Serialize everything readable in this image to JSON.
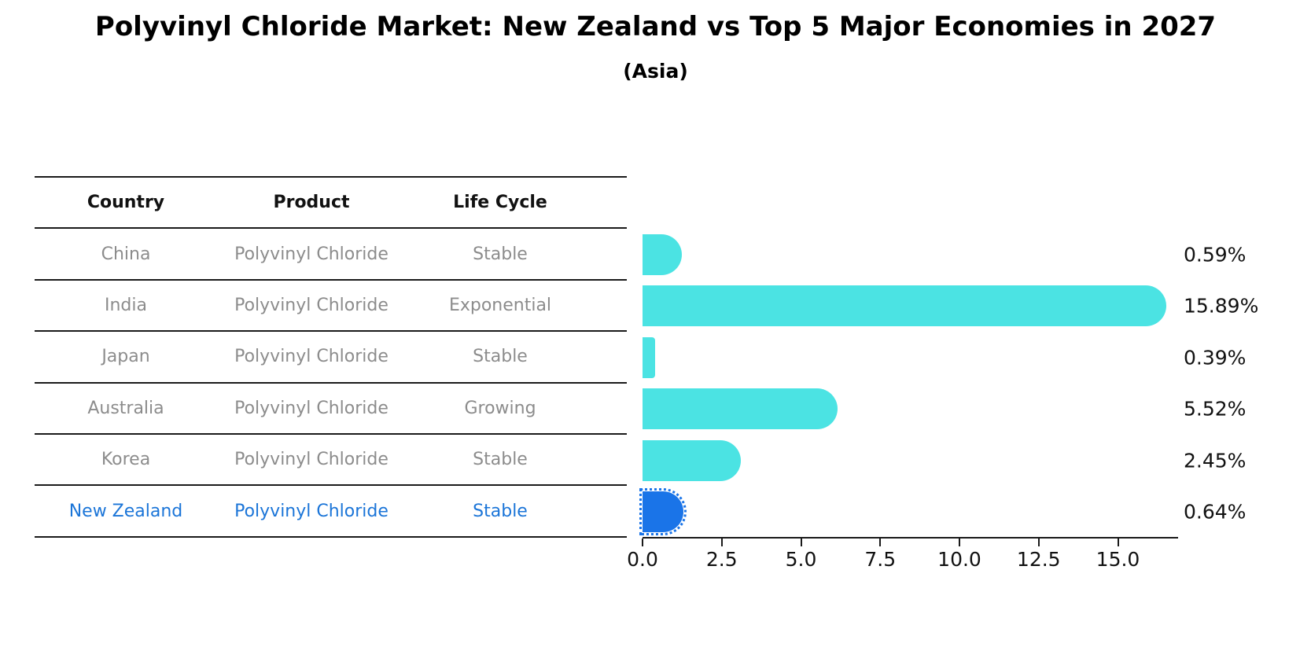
{
  "title": "Polyvinyl Chloride Market: New Zealand vs Top 5 Major Economies in 2027",
  "subtitle": "(Asia)",
  "table": {
    "headers": [
      "Country",
      "Product",
      "Life Cycle"
    ],
    "rows": [
      {
        "country": "China",
        "product": "Polyvinyl Chloride",
        "life_cycle": "Stable",
        "highlight": false
      },
      {
        "country": "India",
        "product": "Polyvinyl Chloride",
        "life_cycle": "Exponential",
        "highlight": false
      },
      {
        "country": "Japan",
        "product": "Polyvinyl Chloride",
        "life_cycle": "Stable",
        "highlight": false
      },
      {
        "country": "Australia",
        "product": "Polyvinyl Chloride",
        "life_cycle": "Growing",
        "highlight": false
      },
      {
        "country": "Korea",
        "product": "Polyvinyl Chloride",
        "life_cycle": "Stable",
        "highlight": false
      },
      {
        "country": "New Zealand",
        "product": "Polyvinyl Chloride",
        "life_cycle": "Stable",
        "highlight": true
      }
    ]
  },
  "chart_data": {
    "type": "bar",
    "orientation": "horizontal",
    "title": "Polyvinyl Chloride Market: New Zealand vs Top 5 Major Economies in 2027",
    "subtitle": "(Asia)",
    "categories": [
      "China",
      "India",
      "Japan",
      "Australia",
      "Korea",
      "New Zealand"
    ],
    "values": [
      0.59,
      15.89,
      0.39,
      5.52,
      2.45,
      0.64
    ],
    "value_labels": [
      "0.59%",
      "15.89%",
      "0.39%",
      "5.52%",
      "2.45%",
      "0.64%"
    ],
    "highlight_index": 5,
    "xticks": [
      "0.0",
      "2.5",
      "5.0",
      "7.5",
      "10.0",
      "12.5",
      "15.0"
    ],
    "xtick_values": [
      0,
      2.5,
      5,
      7.5,
      10,
      12.5,
      15
    ],
    "xlim": [
      0,
      16.9
    ],
    "grid": false,
    "legend": "none",
    "bar_color": "#4be3e3",
    "highlight_color": "#1a74e8",
    "highlight_text_color": "#1b75d8",
    "table_text_color": "#8c8c8c",
    "axis_color": "#1a1a1a"
  }
}
